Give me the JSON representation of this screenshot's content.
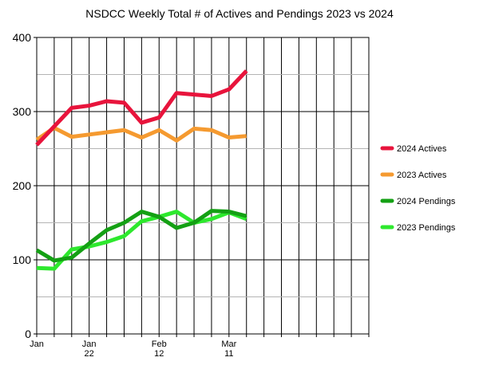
{
  "chart_data": {
    "type": "line",
    "title": "NSDCC Weekly Total # of Actives and Pendings 2023 vs 2024",
    "xlabel": "",
    "ylabel": "",
    "ylim": [
      0,
      400
    ],
    "yticks": [
      0,
      100,
      200,
      300,
      400
    ],
    "grid": true,
    "legend_position": "right",
    "x": [
      0,
      1,
      2,
      3,
      4,
      5,
      6,
      7,
      8,
      9,
      10,
      11,
      12
    ],
    "xlim": [
      0,
      19
    ],
    "x_tick_labels": [
      {
        "index": 0,
        "lines": [
          "Jan",
          ""
        ]
      },
      {
        "index": 3,
        "lines": [
          "Jan",
          "22"
        ]
      },
      {
        "index": 7,
        "lines": [
          "Feb",
          "12"
        ]
      },
      {
        "index": 11,
        "lines": [
          "Mar",
          "11"
        ]
      }
    ],
    "series": [
      {
        "name": "2024 Actives",
        "color": "#e8143c",
        "values": [
          255,
          280,
          305,
          308,
          314,
          312,
          285,
          292,
          325,
          323,
          321,
          330,
          355
        ]
      },
      {
        "name": "2023 Actives",
        "color": "#f59a30",
        "values": [
          262,
          278,
          266,
          269,
          272,
          275,
          265,
          275,
          261,
          277,
          275,
          265,
          267
        ]
      },
      {
        "name": "2024 Pendings",
        "color": "#14a014",
        "values": [
          113,
          99,
          103,
          122,
          140,
          150,
          165,
          158,
          143,
          150,
          166,
          165,
          159
        ]
      },
      {
        "name": "2023 Pendings",
        "color": "#2ee82e",
        "values": [
          89,
          88,
          114,
          118,
          124,
          132,
          152,
          158,
          165,
          150,
          155,
          164,
          155
        ]
      }
    ]
  }
}
